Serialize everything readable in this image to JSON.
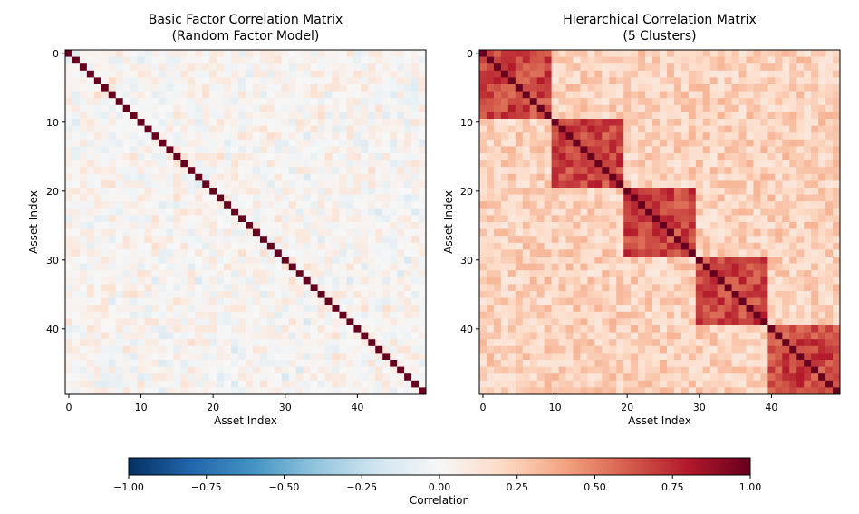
{
  "chart_data": [
    {
      "type": "heatmap",
      "title_line1": "Basic Factor Correlation Matrix",
      "title_line2": "(Random Factor Model)",
      "xlabel": "Asset Index",
      "ylabel": "Asset Index",
      "n_assets": 50,
      "xticks": [
        0,
        10,
        20,
        30,
        40
      ],
      "yticks": [
        0,
        10,
        20,
        30,
        40
      ],
      "diagonal_value": 1.0,
      "off_diagonal_range": [
        -0.2,
        0.25
      ],
      "off_diagonal_typical": 0.02
    },
    {
      "type": "heatmap",
      "title_line1": "Hierarchical Correlation Matrix",
      "title_line2": "(5 Clusters)",
      "xlabel": "Asset Index",
      "ylabel": "Asset Index",
      "n_assets": 50,
      "xticks": [
        0,
        10,
        20,
        30,
        40
      ],
      "yticks": [
        0,
        10,
        20,
        30,
        40
      ],
      "n_clusters": 5,
      "cluster_size": 10,
      "diagonal_value": 1.0,
      "within_cluster_range": [
        0.55,
        0.8
      ],
      "between_cluster_range": [
        0.1,
        0.35
      ]
    }
  ],
  "colorbar": {
    "label": "Correlation",
    "range": [
      -1.0,
      1.0
    ],
    "ticks": [
      -1.0,
      -0.75,
      -0.5,
      -0.25,
      0.0,
      0.25,
      0.5,
      0.75,
      1.0
    ],
    "tick_labels": [
      "−1.00",
      "−0.75",
      "−0.50",
      "−0.25",
      "0.00",
      "0.25",
      "0.50",
      "0.75",
      "1.00"
    ],
    "colormap": "RdBu_r",
    "stops": [
      "#053061",
      "#2166ac",
      "#4393c3",
      "#92c5de",
      "#d1e5f0",
      "#f7f7f7",
      "#fddbc7",
      "#f4a582",
      "#d6604d",
      "#b2182b",
      "#67001f"
    ]
  }
}
